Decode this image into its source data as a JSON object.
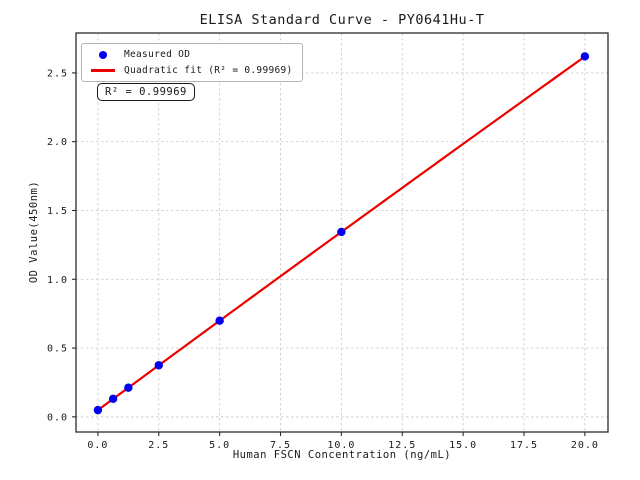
{
  "chart_data": {
    "type": "scatter",
    "title": "ELISA Standard Curve - PY0641Hu-T",
    "xlabel": "Human FSCN Concentration (ng/mL)",
    "ylabel": "OD Value(450nm)",
    "x": [
      0,
      0.625,
      1.25,
      2.5,
      5,
      10,
      20
    ],
    "series": [
      {
        "name": "Measured OD",
        "values": [
          0.049,
          0.131,
          0.212,
          0.375,
          0.699,
          1.344,
          2.62
        ]
      }
    ],
    "fit": {
      "type": "quadratic",
      "r_squared": 0.99969,
      "coefficients": {
        "a": -0.0001,
        "b": 0.1305,
        "c": 0.049
      },
      "x_range": [
        0,
        20
      ]
    },
    "annotation": "R² = 0.99969",
    "legend": [
      {
        "label": "Measured OD",
        "marker": "dot"
      },
      {
        "label": "Quadratic fit (R² = 0.99969)",
        "marker": "line"
      }
    ],
    "legend_position": "upper left",
    "grid": true,
    "xlim": [
      -0.9,
      20.95
    ],
    "ylim": [
      -0.11,
      2.79
    ],
    "xticks": {
      "values": [
        0,
        2.5,
        5,
        7.5,
        10,
        12.5,
        15,
        17.5,
        20
      ],
      "labels": [
        "0.0",
        "2.5",
        "5.0",
        "7.5",
        "10.0",
        "12.5",
        "15.0",
        "17.5",
        "20.0"
      ]
    },
    "yticks": {
      "values": [
        0,
        0.5,
        1,
        1.5,
        2,
        2.5
      ],
      "labels": [
        "0.0",
        "0.5",
        "1.0",
        "1.5",
        "2.0",
        "2.5"
      ]
    },
    "colors": {
      "marker": "#0000ee",
      "fit_line": "#ee0000",
      "grid": "#cdcdcd",
      "spine": "#2b2b2b",
      "text": "#1a1a1a"
    }
  }
}
